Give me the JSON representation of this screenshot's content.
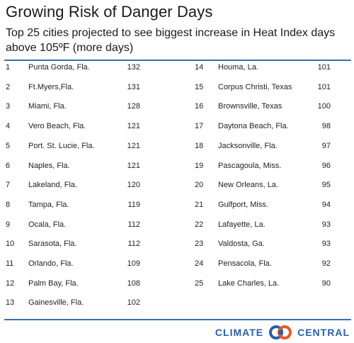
{
  "header": {
    "title": "Growing Risk of Danger Days",
    "subtitle": "Top 25 cities projected to see biggest increase in Heat Index days above 105ºF (more days)"
  },
  "chart_data": {
    "type": "table",
    "title": "Growing Risk of Danger Days",
    "subtitle": "Top 25 cities projected to see biggest increase in Heat Index days above 105ºF (more days)",
    "columns": [
      "rank",
      "city",
      "days"
    ],
    "rows": [
      {
        "rank": "1",
        "city": "Punta Gorda, Fla.",
        "days": 132
      },
      {
        "rank": "2",
        "city": "Ft.Myers,Fla.",
        "days": 131
      },
      {
        "rank": "3",
        "city": "Miami, Fla.",
        "days": 128
      },
      {
        "rank": "4",
        "city": "Vero Beach, Fla.",
        "days": 121
      },
      {
        "rank": "5",
        "city": "Port. St. Lucie, Fla.",
        "days": 121
      },
      {
        "rank": "6",
        "city": "Naples, Fla.",
        "days": 121
      },
      {
        "rank": "7",
        "city": "Lakeland, Fla.",
        "days": 120
      },
      {
        "rank": "8",
        "city": "Tampa, Fla.",
        "days": 119
      },
      {
        "rank": "9",
        "city": "Ocala, Fla.",
        "days": 112
      },
      {
        "rank": "10",
        "city": "Sarasota, Fla.",
        "days": 112
      },
      {
        "rank": "11",
        "city": "Orlando, Fla.",
        "days": 109
      },
      {
        "rank": "12",
        "city": "Palm Bay, Fla.",
        "days": 108
      },
      {
        "rank": "13",
        "city": "Gainesville, Fla.",
        "days": 102
      },
      {
        "rank": "14",
        "city": "Houma, La.",
        "days": 101
      },
      {
        "rank": "15",
        "city": "Corpus Christi, Texas",
        "days": 101
      },
      {
        "rank": "16",
        "city": "Brownsville, Texas",
        "days": 100
      },
      {
        "rank": "17",
        "city": "Daytona Beach, Fla.",
        "days": 98
      },
      {
        "rank": "18",
        "city": "Jacksonville, Fla.",
        "days": 97
      },
      {
        "rank": "19",
        "city": "Pascagoula, Miss.",
        "days": 96
      },
      {
        "rank": "20",
        "city": "New Orleans, La.",
        "days": 95
      },
      {
        "rank": "21",
        "city": "Gulfport, Miss.",
        "days": 94
      },
      {
        "rank": "22",
        "city": "Lafayette, La.",
        "days": 93
      },
      {
        "rank": "23",
        "city": "Valdosta, Ga.",
        "days": 93
      },
      {
        "rank": "24",
        "city": "Pensacola, Fla.",
        "days": 92
      },
      {
        "rank": "25",
        "city": "Lake Charles, La.",
        "days": 90
      }
    ]
  },
  "footer": {
    "logo_left": "CLIMATE",
    "logo_right": "CENTRAL",
    "logo_icon": "climate-central-rings-icon",
    "brand_color": "#2a5fa8",
    "accent_color": "#e25a2c"
  }
}
